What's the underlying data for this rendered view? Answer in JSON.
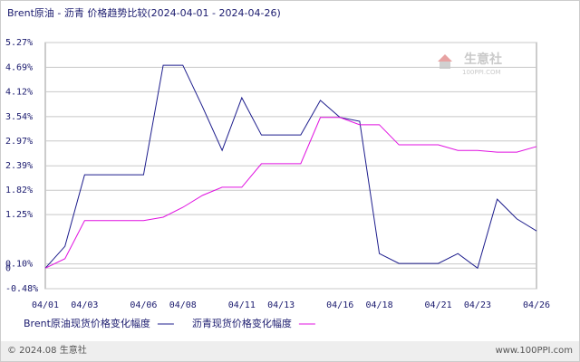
{
  "chart_data": {
    "type": "line",
    "title": "Brent原油 - 沥青 价格趋势比较(2024-04-01 - 2024-04-26)",
    "categories": [
      "04/01",
      null,
      "04/03",
      null,
      null,
      "04/06",
      null,
      "04/08",
      null,
      null,
      "04/11",
      null,
      "04/13",
      null,
      null,
      "04/16",
      null,
      "04/18",
      null,
      null,
      "04/21",
      null,
      "04/23",
      null,
      null,
      "04/26"
    ],
    "series": [
      {
        "name": "Brent原油现货价格变化幅度",
        "color": "#1c1c8c",
        "values": [
          0.0,
          0.51,
          2.18,
          2.18,
          2.18,
          2.18,
          4.74,
          4.74,
          3.77,
          2.75,
          3.98,
          3.11,
          3.11,
          3.11,
          3.92,
          3.52,
          3.43,
          0.34,
          0.11,
          0.11,
          0.11,
          0.34,
          0.0,
          1.61,
          1.15,
          0.87
        ]
      },
      {
        "name": "沥青现货价格变化幅度",
        "color": "#e010e0",
        "values": [
          0.0,
          0.22,
          1.11,
          1.11,
          1.11,
          1.11,
          1.19,
          1.42,
          1.7,
          1.89,
          1.89,
          2.44,
          2.44,
          2.44,
          3.52,
          3.52,
          3.35,
          3.35,
          2.88,
          2.88,
          2.88,
          2.75,
          2.75,
          2.71,
          2.71,
          2.84
        ]
      }
    ],
    "ylim": [
      -0.48,
      5.27
    ],
    "yticks": [
      {
        "value": 5.27,
        "label": "5.27%"
      },
      {
        "value": 4.69,
        "label": "4.69%"
      },
      {
        "value": 4.12,
        "label": "4.12%"
      },
      {
        "value": 3.54,
        "label": "3.54%"
      },
      {
        "value": 2.97,
        "label": "2.97%"
      },
      {
        "value": 2.39,
        "label": "2.39%"
      },
      {
        "value": 1.82,
        "label": "1.82%"
      },
      {
        "value": 1.25,
        "label": "1.25%"
      },
      0,
      {
        "value": 0.1,
        "label": "0.10%"
      },
      {
        "value": -0.48,
        "label": "-0.48%"
      }
    ],
    "grid": true,
    "watermark": "生意社",
    "watermark_sub": "100PPI.COM",
    "footer_left": "© 2024.08 生意社",
    "footer_right": "www.100PPI.com"
  }
}
